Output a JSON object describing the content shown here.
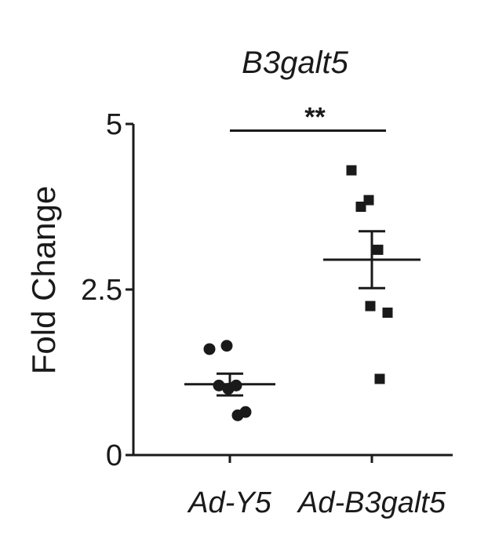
{
  "chart_data": {
    "type": "scatter",
    "title": "B3galt5",
    "ylabel": "Fold Change",
    "xlabel": "",
    "ylim": [
      0,
      5
    ],
    "yticks": [
      {
        "value": 0,
        "label": "0"
      },
      {
        "value": 2.5,
        "label": "2.5"
      },
      {
        "value": 5,
        "label": "5"
      }
    ],
    "categories": [
      "Ad-Y5",
      "Ad-B3galt5"
    ],
    "series": [
      {
        "category": "Ad-Y5",
        "marker": "circle",
        "values": [
          1.6,
          1.65,
          1.05,
          1.05,
          1.0,
          0.65,
          0.6
        ],
        "mean": 1.07,
        "sem_upper": 1.23,
        "sem_lower": 0.9
      },
      {
        "category": "Ad-B3galt5",
        "marker": "square",
        "values": [
          4.3,
          3.85,
          3.75,
          3.1,
          2.25,
          2.15,
          1.15
        ],
        "mean": 2.95,
        "sem_upper": 3.38,
        "sem_lower": 2.52
      }
    ],
    "significance": {
      "label": "**",
      "between": [
        "Ad-Y5",
        "Ad-B3galt5"
      ],
      "y": 4.9
    },
    "grid": false,
    "legend": "none"
  }
}
